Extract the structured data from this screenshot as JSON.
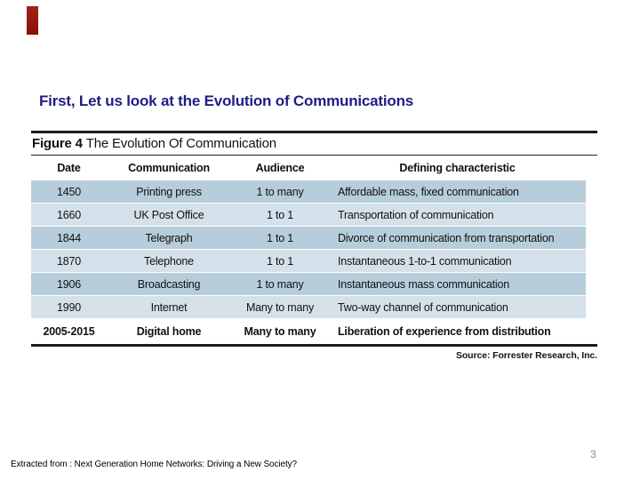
{
  "slide": {
    "title": "First, Let us look at the Evolution of Communications",
    "title_color": "#1e1d86",
    "accent_color": "#9a1a10",
    "footer": "Extracted from : Next Generation Home Networks: Driving a New Society?",
    "page_number": "3"
  },
  "figure": {
    "label": "Figure 4",
    "title": "The Evolution Of Communication",
    "source": "Source: Forrester Research, Inc.",
    "columns": [
      "Date",
      "Communication",
      "Audience",
      "Defining characteristic"
    ],
    "row_colors": {
      "dark": "#b7cddb",
      "light": "#d5e1ea"
    },
    "rows": [
      {
        "date": "1450",
        "communication": "Printing press",
        "audience": "1 to many",
        "characteristic": "Affordable mass, fixed communication"
      },
      {
        "date": "1660",
        "communication": "UK Post Office",
        "audience": "1 to 1",
        "characteristic": "Transportation of communication"
      },
      {
        "date": "1844",
        "communication": "Telegraph",
        "audience": "1 to 1",
        "characteristic": "Divorce of communication from transportation"
      },
      {
        "date": "1870",
        "communication": "Telephone",
        "audience": "1 to 1",
        "characteristic": "Instantaneous 1-to-1 communication"
      },
      {
        "date": "1906",
        "communication": "Broadcasting",
        "audience": "1 to many",
        "characteristic": "Instantaneous mass communication"
      },
      {
        "date": "1990",
        "communication": "Internet",
        "audience": "Many to many",
        "characteristic": "Two-way channel of communication"
      },
      {
        "date": "2005-2015",
        "communication": "Digital home",
        "audience": "Many to many",
        "characteristic": "Liberation of experience from distribution"
      }
    ]
  }
}
